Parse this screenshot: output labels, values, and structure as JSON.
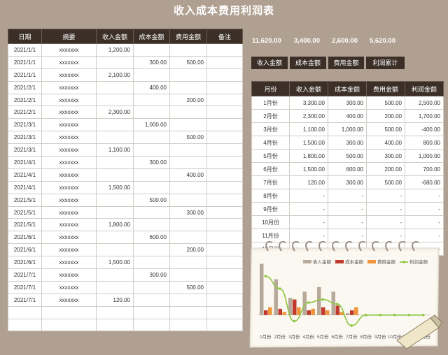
{
  "title": "收入成本费用利润表",
  "ledger": {
    "headers": [
      "日期",
      "摘要",
      "收入金额",
      "成本金额",
      "费用金额",
      "备注"
    ],
    "rows": [
      [
        "2021/1/1",
        "xxxxxxx",
        "1,200.00",
        "",
        "",
        ""
      ],
      [
        "2021/1/1",
        "xxxxxxx",
        "",
        "300.00",
        "500.00",
        ""
      ],
      [
        "2021/1/1",
        "xxxxxxx",
        "2,100.00",
        "",
        "",
        ""
      ],
      [
        "2021/2/1",
        "xxxxxxx",
        "",
        "400.00",
        "",
        ""
      ],
      [
        "2021/2/1",
        "xxxxxxx",
        "",
        "",
        "200.00",
        ""
      ],
      [
        "2021/2/1",
        "xxxxxxx",
        "2,300.00",
        "",
        "",
        ""
      ],
      [
        "2021/3/1",
        "xxxxxxx",
        "",
        "1,000.00",
        "",
        ""
      ],
      [
        "2021/3/1",
        "xxxxxxx",
        "",
        "",
        "500.00",
        ""
      ],
      [
        "2021/3/1",
        "xxxxxxx",
        "1,100.00",
        "",
        "",
        ""
      ],
      [
        "2021/4/1",
        "xxxxxxx",
        "",
        "300.00",
        "",
        ""
      ],
      [
        "2021/4/1",
        "xxxxxxx",
        "",
        "",
        "400.00",
        ""
      ],
      [
        "2021/4/1",
        "xxxxxxx",
        "1,500.00",
        "",
        "",
        ""
      ],
      [
        "2021/5/1",
        "xxxxxxx",
        "",
        "500.00",
        "",
        ""
      ],
      [
        "2021/5/1",
        "xxxxxxx",
        "",
        "",
        "300.00",
        ""
      ],
      [
        "2021/5/1",
        "xxxxxxx",
        "1,800.00",
        "",
        "",
        ""
      ],
      [
        "2021/6/1",
        "xxxxxxx",
        "",
        "600.00",
        "",
        ""
      ],
      [
        "2021/6/1",
        "xxxxxxx",
        "",
        "",
        "200.00",
        ""
      ],
      [
        "2021/6/1",
        "xxxxxxx",
        "1,500.00",
        "",
        "",
        ""
      ],
      [
        "2021/7/1",
        "xxxxxxx",
        "",
        "300.00",
        "",
        ""
      ],
      [
        "2021/7/1",
        "xxxxxxx",
        "",
        "",
        "500.00",
        ""
      ],
      [
        "2021/7/1",
        "xxxxxxx",
        "120.00",
        "",
        "",
        ""
      ],
      [
        "",
        "",
        "",
        "",
        "",
        ""
      ],
      [
        "",
        "",
        "",
        "",
        "",
        ""
      ]
    ]
  },
  "totals": [
    "11,620.00",
    "3,400.00",
    "2,600.00",
    "5,620.00"
  ],
  "buttons": [
    "收入金额",
    "成本金额",
    "费用金额",
    "利润累计"
  ],
  "summary": {
    "headers": [
      "月份",
      "收入金额",
      "成本金额",
      "费用金额",
      "利润金额"
    ],
    "rows": [
      [
        "1月份",
        "3,300.00",
        "300.00",
        "500.00",
        "2,500.00"
      ],
      [
        "2月份",
        "2,300.00",
        "400.00",
        "200.00",
        "1,700.00"
      ],
      [
        "3月份",
        "1,100.00",
        "1,000.00",
        "500.00",
        "-400.00"
      ],
      [
        "4月份",
        "1,500.00",
        "300.00",
        "400.00",
        "800.00"
      ],
      [
        "5月份",
        "1,800.00",
        "500.00",
        "300.00",
        "1,000.00"
      ],
      [
        "6月份",
        "1,500.00",
        "600.00",
        "200.00",
        "700.00"
      ],
      [
        "7月份",
        "120.00",
        "300.00",
        "500.00",
        "-680.00"
      ],
      [
        "8月份",
        "-",
        "-",
        "-",
        "-"
      ],
      [
        "9月份",
        "-",
        "-",
        "-",
        "-"
      ],
      [
        "10月份",
        "-",
        "-",
        "-",
        "-"
      ],
      [
        "11月份",
        "-",
        "-",
        "-",
        "-"
      ],
      [
        "12月份",
        "-",
        "-",
        "-",
        "-"
      ]
    ]
  },
  "colors": {
    "header_bg": "#3b2f27",
    "page_bg": "#b0a092",
    "income": "#b8aa9a",
    "cost": "#c0392b",
    "expense": "#f0953a",
    "profit": "#8dc63f"
  },
  "chart_data": {
    "type": "bar",
    "categories": [
      "1月份",
      "2月份",
      "3月份",
      "4月份",
      "5月份",
      "6月份",
      "7月份",
      "8月份",
      "9月份",
      "10月份",
      "11月份",
      "12月份"
    ],
    "series": [
      {
        "name": "收入金额",
        "kind": "bar",
        "values": [
          3300,
          2300,
          1100,
          1500,
          1800,
          1500,
          120,
          null,
          null,
          null,
          null,
          null
        ]
      },
      {
        "name": "成本金额",
        "kind": "bar",
        "values": [
          300,
          400,
          1000,
          300,
          500,
          600,
          300,
          null,
          null,
          null,
          null,
          null
        ]
      },
      {
        "name": "费用金额",
        "kind": "bar",
        "values": [
          500,
          200,
          500,
          400,
          300,
          200,
          500,
          null,
          null,
          null,
          null,
          null
        ]
      },
      {
        "name": "利润金额",
        "kind": "line",
        "values": [
          2500,
          1700,
          -400,
          800,
          1000,
          700,
          -680,
          0,
          0,
          0,
          0,
          0
        ]
      }
    ],
    "ylim": [
      -1000,
      3500
    ],
    "legend": "top-right",
    "grid": false
  }
}
